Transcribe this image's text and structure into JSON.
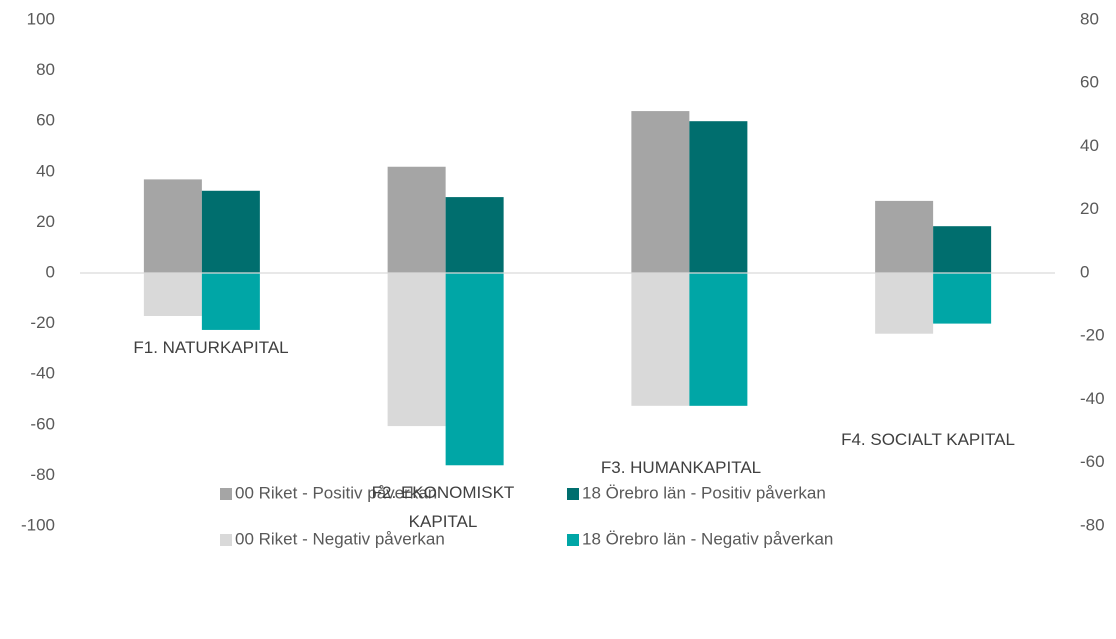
{
  "chart_data": {
    "type": "bar",
    "categories": [
      "F1. NATURKAPITAL",
      "F2. EKONOMISKT KAPITAL",
      "F3. HUMANKAPITAL",
      "F4. SOCIALT KAPITAL"
    ],
    "series": [
      {
        "name": "00 Riket - Positiv påverkan",
        "color": "#a5a5a5",
        "values": [
          37,
          42,
          64,
          28.5
        ]
      },
      {
        "name": "18 Örebro län - Positiv påverkan",
        "color": "#006e6e",
        "values": [
          32.5,
          30,
          60,
          18.5
        ]
      },
      {
        "name": "00 Riket - Negativ påverkan",
        "color": "#d9d9d9",
        "values": [
          -17,
          -60.5,
          -52.5,
          -24
        ]
      },
      {
        "name": "18 Örebro län - Negativ påverkan",
        "color": "#00a6a6",
        "values": [
          -22.5,
          -76,
          -52.5,
          -20
        ]
      }
    ],
    "ylim": [
      -100,
      100
    ],
    "yticks": [
      -100,
      -80,
      -60,
      -40,
      -20,
      0,
      20,
      40,
      60,
      80,
      100
    ],
    "y2lim": [
      -80,
      80
    ],
    "y2ticks": [
      -80,
      -60,
      -40,
      -20,
      0,
      20,
      40,
      60,
      80
    ]
  }
}
